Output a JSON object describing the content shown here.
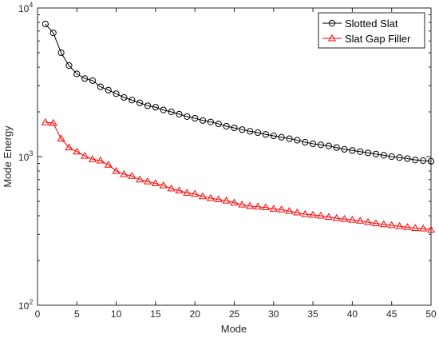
{
  "chart_data": {
    "type": "line",
    "xlabel": "Mode",
    "ylabel": "Mode Energy",
    "xlim": [
      0,
      50
    ],
    "ylim": [
      100,
      10000
    ],
    "yscale": "log",
    "grid": false,
    "legend_position": "top-right",
    "x_ticks": [
      "0",
      "5",
      "10",
      "15",
      "20",
      "25",
      "30",
      "35",
      "40",
      "45",
      "50"
    ],
    "y_ticks": [
      {
        "base": "10",
        "exp": "2",
        "value": 100
      },
      {
        "base": "10",
        "exp": "3",
        "value": 1000
      },
      {
        "base": "10",
        "exp": "4",
        "value": 10000
      }
    ],
    "x": [
      1,
      2,
      3,
      4,
      5,
      6,
      7,
      8,
      9,
      10,
      11,
      12,
      13,
      14,
      15,
      16,
      17,
      18,
      19,
      20,
      21,
      22,
      23,
      24,
      25,
      26,
      27,
      28,
      29,
      30,
      31,
      32,
      33,
      34,
      35,
      36,
      37,
      38,
      39,
      40,
      41,
      42,
      43,
      44,
      45,
      46,
      47,
      48,
      49,
      50
    ],
    "series": [
      {
        "name": "Slotted Slat",
        "color": "#000000",
        "marker": "circle",
        "values": [
          7800,
          6800,
          5000,
          4100,
          3600,
          3350,
          3250,
          2950,
          2800,
          2650,
          2500,
          2400,
          2300,
          2200,
          2150,
          2060,
          2000,
          1930,
          1860,
          1810,
          1750,
          1710,
          1660,
          1600,
          1560,
          1520,
          1480,
          1450,
          1410,
          1380,
          1350,
          1320,
          1290,
          1250,
          1220,
          1200,
          1180,
          1150,
          1120,
          1100,
          1080,
          1060,
          1040,
          1020,
          1000,
          985,
          970,
          950,
          940,
          930
        ]
      },
      {
        "name": "Slat Gap Filler",
        "color": "#ff0000",
        "marker": "triangle",
        "values": [
          1700,
          1680,
          1320,
          1150,
          1080,
          1010,
          960,
          940,
          880,
          800,
          760,
          740,
          700,
          680,
          660,
          640,
          610,
          590,
          570,
          560,
          540,
          525,
          515,
          505,
          490,
          475,
          465,
          460,
          455,
          445,
          440,
          430,
          420,
          410,
          405,
          400,
          392,
          385,
          380,
          375,
          370,
          362,
          355,
          350,
          345,
          340,
          335,
          330,
          328,
          322
        ]
      }
    ]
  }
}
